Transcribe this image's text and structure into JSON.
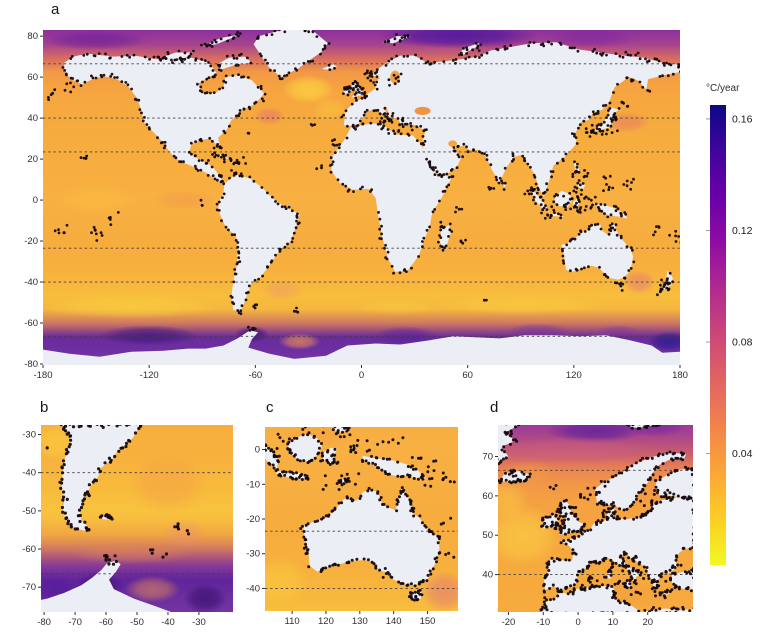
{
  "figure": {
    "background": "#ffffff"
  },
  "panels": {
    "a": {
      "label": "a",
      "x_tick_labels": [
        "-180",
        "-120",
        "-60",
        "0",
        "60",
        "120",
        "180"
      ],
      "x_tick_values": [
        -180,
        -120,
        -60,
        0,
        60,
        120,
        180
      ],
      "y_tick_labels": [
        "80",
        "60",
        "40",
        "20",
        "0",
        "-20",
        "-40",
        "-60",
        "-80"
      ],
      "y_tick_values": [
        80,
        60,
        40,
        20,
        0,
        -20,
        -40,
        -60,
        -80
      ],
      "dashed_latitudes": [
        66.5,
        40,
        23.5,
        -23.5,
        -40,
        -66.5
      ]
    },
    "b": {
      "label": "b",
      "x_tick_labels": [
        "-80",
        "-70",
        "-60",
        "-50",
        "-40",
        "-30"
      ],
      "x_tick_values": [
        -80,
        -70,
        -60,
        -50,
        -40,
        -30
      ],
      "y_tick_labels": [
        "-30",
        "-40",
        "-50",
        "-60",
        "-70"
      ],
      "y_tick_values": [
        -30,
        -40,
        -50,
        -60,
        -70
      ],
      "dashed_latitudes": [
        -40,
        -66.5
      ]
    },
    "c": {
      "label": "c",
      "x_tick_labels": [
        "110",
        "120",
        "130",
        "140",
        "150"
      ],
      "x_tick_values": [
        110,
        120,
        130,
        140,
        150
      ],
      "y_tick_labels": [
        "0",
        "-10",
        "-20",
        "-30",
        "-40"
      ],
      "y_tick_values": [
        0,
        -10,
        -20,
        -30,
        -40
      ],
      "dashed_latitudes": [
        -23.5,
        -40
      ]
    },
    "d": {
      "label": "d",
      "x_tick_labels": [
        "-20",
        "-10",
        "0",
        "10",
        "20"
      ],
      "x_tick_values": [
        -20,
        -10,
        0,
        10,
        20
      ],
      "y_tick_labels": [
        "70",
        "60",
        "50",
        "40"
      ],
      "y_tick_values": [
        70,
        60,
        50,
        40
      ],
      "dashed_latitudes": [
        66.5,
        40
      ]
    }
  },
  "colorbar": {
    "title": "°C/year",
    "tick_labels": [
      "0.16",
      "0.12",
      "0.08",
      "0.04"
    ],
    "tick_values": [
      0.16,
      0.12,
      0.08,
      0.04
    ],
    "value_range": [
      0,
      0.165
    ],
    "gradient_top_to_bottom": [
      "#0d0887",
      "#41049d",
      "#6a00a8",
      "#8f0da4",
      "#b12a90",
      "#cc4778",
      "#e16462",
      "#f2844b",
      "#fca636",
      "#fcce25",
      "#f0f921"
    ]
  },
  "map_colors": {
    "land": "#eceef5",
    "station_dot": "#16090e",
    "dashed_line": "#3f3f3f",
    "axis_text": "#2e2e2e"
  },
  "chart_data": {
    "type": "heatmap",
    "units": "°C/year",
    "colorbar_ticks": [
      0.04,
      0.08,
      0.12,
      0.16
    ],
    "colorbar_range": [
      0,
      0.165
    ],
    "palette": "plasma reversed (yellow = low trend, dark blue = high trend)",
    "dashed_latitudes": [
      66.5,
      40,
      23.5,
      -23.5,
      -40,
      -66.5
    ],
    "panels": [
      {
        "id": "a",
        "lon_range": [
          -180,
          180
        ],
        "lat_range": [
          -80.5,
          83
        ]
      },
      {
        "id": "b",
        "lon_range": [
          -81,
          -19
        ],
        "lat_range": [
          -76.5,
          -27.5
        ]
      },
      {
        "id": "c",
        "lon_range": [
          102,
          159
        ],
        "lat_range": [
          -46.5,
          6.5
        ]
      },
      {
        "id": "d",
        "lon_range": [
          -23,
          33
        ],
        "lat_range": [
          30.5,
          78
        ]
      }
    ]
  }
}
